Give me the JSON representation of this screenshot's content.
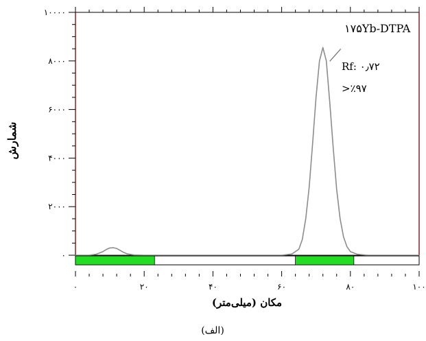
{
  "chart_data": {
    "type": "line",
    "xlabel": "مکان (میلی‌متر)",
    "ylabel": "شمارش",
    "caption": "(الف)",
    "xlim": [
      0,
      100
    ],
    "ylim": [
      0,
      10000
    ],
    "xticks": [
      0,
      20,
      40,
      60,
      80,
      100
    ],
    "xtick_labels": [
      "۰",
      "۲۰",
      "۴۰",
      "۶۰",
      "۸۰",
      "۱۰۰"
    ],
    "yticks": [
      0,
      2000,
      4000,
      6000,
      8000,
      10000
    ],
    "ytick_labels": [
      "۰",
      "۲۰۰۰",
      "۴۰۰۰",
      "۶۰۰۰",
      "۸۰۰۰",
      "۱۰۰۰۰"
    ],
    "series": [
      {
        "x": [
          0,
          4,
          6,
          8,
          9,
          10,
          11,
          12,
          13,
          14,
          15,
          17,
          20,
          30,
          40,
          50,
          60,
          63,
          65,
          66,
          67,
          68,
          69,
          70,
          71,
          72,
          73,
          74,
          75,
          76,
          77,
          78,
          79,
          80,
          82,
          85,
          90,
          100
        ],
        "y": [
          0,
          0,
          40,
          150,
          240,
          300,
          310,
          280,
          200,
          120,
          60,
          10,
          0,
          0,
          0,
          0,
          0,
          50,
          250,
          650,
          1500,
          2800,
          4600,
          6500,
          8000,
          8550,
          8000,
          6300,
          4400,
          2700,
          1500,
          750,
          350,
          150,
          40,
          0,
          0,
          0
        ],
        "color": "#8c8c8c"
      }
    ],
    "bands": [
      {
        "from": 0,
        "to": 23,
        "color": "#22dd22"
      },
      {
        "from": 64,
        "to": 81,
        "color": "#22dd22"
      }
    ],
    "vlines": [
      {
        "x": 0,
        "color": "#8b2020"
      },
      {
        "x": 100,
        "color": "#8b2020"
      }
    ],
    "annotation": {
      "lines": [
        "۱۷۵Yb-DTPA",
        "Rf: ۰٫۷۲",
        ">٪۹۷"
      ],
      "target": {
        "x": 72,
        "y": 8550
      }
    }
  }
}
